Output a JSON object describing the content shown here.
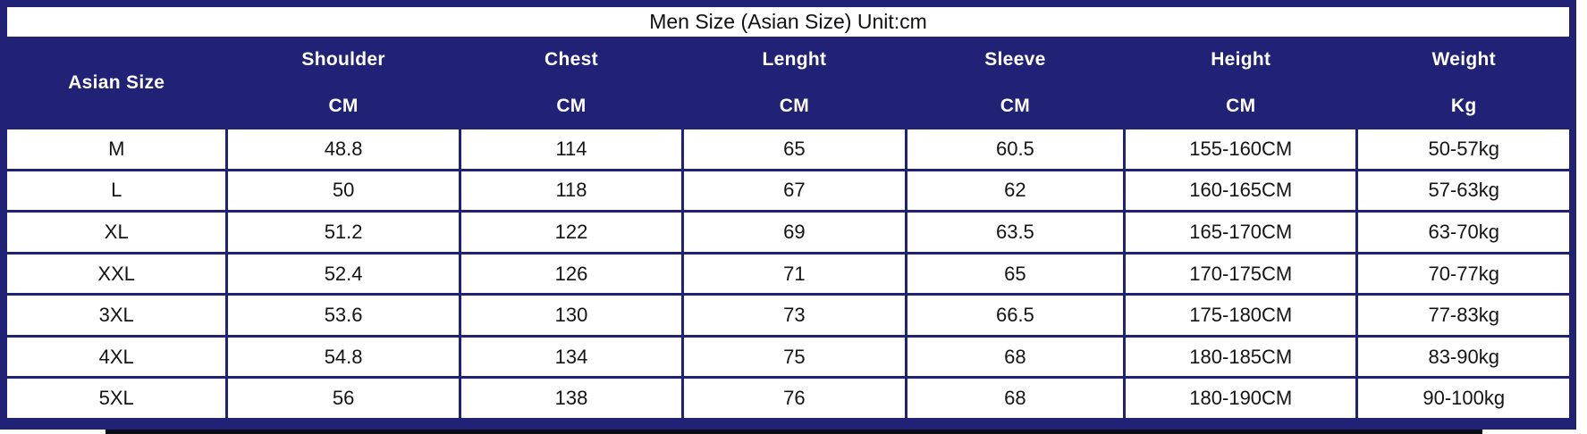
{
  "title": "Men Size (Asian Size) Unit:cm",
  "colors": {
    "navy": "#212175",
    "cell_bg": "#ffffff",
    "text": "#141414",
    "header_text": "#ffffff"
  },
  "table": {
    "columns": [
      {
        "label": "Asian Size",
        "unit": ""
      },
      {
        "label": "Shoulder",
        "unit": "CM"
      },
      {
        "label": "Chest",
        "unit": "CM"
      },
      {
        "label": "Lenght",
        "unit": "CM"
      },
      {
        "label": "Sleeve",
        "unit": "CM"
      },
      {
        "label": "Height",
        "unit": "CM"
      },
      {
        "label": "Weight",
        "unit": "Kg"
      }
    ],
    "rows": [
      [
        "M",
        "48.8",
        "114",
        "65",
        "60.5",
        "155-160CM",
        "50-57kg"
      ],
      [
        "L",
        "50",
        "118",
        "67",
        "62",
        "160-165CM",
        "57-63kg"
      ],
      [
        "XL",
        "51.2",
        "122",
        "69",
        "63.5",
        "165-170CM",
        "63-70kg"
      ],
      [
        "XXL",
        "52.4",
        "126",
        "71",
        "65",
        "170-175CM",
        "70-77kg"
      ],
      [
        "3XL",
        "53.6",
        "130",
        "73",
        "66.5",
        "175-180CM",
        "77-83kg"
      ],
      [
        "4XL",
        "54.8",
        "134",
        "75",
        "68",
        "180-185CM",
        "83-90kg"
      ],
      [
        "5XL",
        "56",
        "138",
        "76",
        "68",
        "180-190CM",
        "90-100kg"
      ]
    ]
  },
  "chart_data": {
    "type": "table",
    "title": "Men Size (Asian Size) Unit:cm",
    "columns": [
      "Asian Size",
      "Shoulder CM",
      "Chest CM",
      "Lenght CM",
      "Sleeve CM",
      "Height CM",
      "Weight Kg"
    ],
    "rows": [
      [
        "M",
        48.8,
        114,
        65,
        60.5,
        "155-160CM",
        "50-57kg"
      ],
      [
        "L",
        50,
        118,
        67,
        62,
        "160-165CM",
        "57-63kg"
      ],
      [
        "XL",
        51.2,
        122,
        69,
        63.5,
        "165-170CM",
        "63-70kg"
      ],
      [
        "XXL",
        52.4,
        126,
        71,
        65,
        "170-175CM",
        "70-77kg"
      ],
      [
        "3XL",
        53.6,
        130,
        73,
        66.5,
        "175-180CM",
        "77-83kg"
      ],
      [
        "4XL",
        54.8,
        134,
        75,
        68,
        "180-185CM",
        "83-90kg"
      ],
      [
        "5XL",
        56,
        138,
        76,
        68,
        "180-190CM",
        "90-100kg"
      ]
    ]
  }
}
